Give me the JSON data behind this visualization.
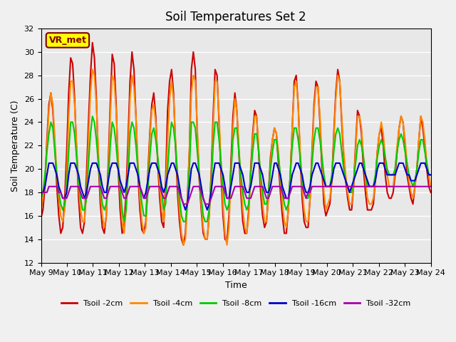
{
  "title": "Soil Temperatures Set 2",
  "xlabel": "Time",
  "ylabel": "Soil Temperature (C)",
  "xlim": [
    0,
    15
  ],
  "ylim": [
    12,
    32
  ],
  "yticks": [
    12,
    14,
    16,
    18,
    20,
    22,
    24,
    26,
    28,
    30,
    32
  ],
  "xtick_labels": [
    "May 9",
    "May 10",
    "May 11",
    "May 12",
    "May 13",
    "May 14",
    "May 15",
    "May 16",
    "May 17",
    "May 18",
    "May 19",
    "May 20",
    "May 21",
    "May 22",
    "May 23",
    "May 24"
  ],
  "background_color": "#e8e8e8",
  "grid_color": "#ffffff",
  "annotation_text": "VR_met",
  "annotation_box_color": "#ffff00",
  "annotation_text_color": "#800000",
  "series": {
    "Tsoil -2cm": {
      "color": "#cc0000",
      "lw": 1.5
    },
    "Tsoil -4cm": {
      "color": "#ff8800",
      "lw": 1.5
    },
    "Tsoil -8cm": {
      "color": "#00cc00",
      "lw": 1.5
    },
    "Tsoil -16cm": {
      "color": "#0000cc",
      "lw": 1.5
    },
    "Tsoil -32cm": {
      "color": "#aa00aa",
      "lw": 1.5
    }
  },
  "t2cm": [
    15.8,
    16.5,
    18.5,
    22.5,
    25.5,
    26.5,
    25.0,
    22.0,
    18.5,
    16.0,
    14.5,
    15.0,
    17.5,
    21.5,
    26.5,
    29.5,
    29.0,
    26.0,
    21.5,
    17.5,
    15.0,
    14.5,
    15.5,
    19.5,
    24.0,
    28.0,
    30.8,
    29.5,
    26.0,
    20.5,
    17.0,
    15.0,
    14.5,
    16.0,
    20.5,
    25.5,
    29.8,
    29.0,
    25.5,
    20.0,
    16.5,
    14.5,
    15.0,
    18.0,
    22.5,
    27.5,
    30.0,
    28.5,
    24.5,
    19.5,
    16.5,
    14.8,
    14.5,
    15.5,
    19.5,
    23.0,
    25.5,
    26.5,
    24.5,
    20.5,
    17.5,
    15.5,
    15.0,
    19.0,
    25.0,
    27.5,
    28.5,
    26.5,
    22.0,
    18.0,
    15.5,
    14.0,
    13.5,
    14.5,
    17.5,
    21.5,
    28.5,
    30.0,
    28.5,
    23.0,
    19.0,
    16.5,
    14.5,
    14.0,
    14.0,
    16.0,
    19.5,
    24.5,
    28.5,
    28.0,
    24.0,
    19.5,
    16.0,
    14.0,
    13.8,
    16.0,
    20.5,
    24.5,
    26.5,
    25.0,
    21.5,
    18.0,
    15.5,
    14.5,
    14.5,
    16.5,
    20.0,
    23.0,
    25.0,
    24.5,
    21.5,
    18.0,
    16.0,
    15.0,
    15.5,
    18.0,
    21.0,
    22.5,
    23.5,
    23.0,
    20.5,
    18.0,
    16.0,
    14.5,
    14.5,
    16.5,
    19.5,
    23.5,
    27.5,
    28.0,
    25.5,
    21.0,
    17.5,
    15.5,
    15.0,
    15.0,
    17.5,
    21.5,
    25.5,
    27.5,
    27.0,
    24.0,
    20.0,
    17.0,
    16.0,
    16.5,
    17.0,
    19.0,
    23.0,
    26.5,
    28.5,
    27.5,
    24.0,
    21.0,
    19.0,
    17.5,
    16.5,
    16.5,
    18.5,
    22.0,
    25.0,
    24.5,
    23.0,
    20.0,
    18.0,
    16.5,
    16.5,
    16.5,
    17.0,
    19.0,
    21.5,
    23.0,
    23.5,
    22.0,
    19.5,
    18.0,
    17.5,
    17.5,
    18.0,
    19.5,
    21.5,
    23.5,
    24.5,
    24.0,
    22.0,
    19.5,
    18.5,
    17.5,
    17.0,
    18.5,
    20.0,
    22.5,
    24.5,
    23.5,
    22.0,
    20.0,
    18.5,
    18.0
  ],
  "t4cm": [
    16.5,
    17.5,
    19.0,
    22.0,
    25.0,
    26.5,
    25.5,
    22.5,
    19.5,
    17.5,
    16.0,
    15.5,
    16.5,
    19.5,
    24.5,
    27.5,
    27.5,
    25.5,
    22.0,
    18.5,
    16.5,
    15.5,
    15.5,
    18.0,
    22.5,
    26.5,
    28.5,
    28.0,
    25.5,
    21.5,
    18.0,
    16.0,
    15.0,
    16.0,
    19.5,
    24.5,
    28.0,
    27.5,
    25.0,
    21.0,
    18.0,
    15.5,
    14.5,
    16.5,
    21.0,
    26.0,
    28.0,
    27.0,
    24.5,
    20.5,
    17.5,
    15.5,
    14.5,
    15.0,
    18.5,
    22.5,
    25.0,
    25.5,
    24.0,
    21.0,
    18.5,
    16.5,
    15.5,
    18.0,
    22.5,
    26.0,
    27.5,
    26.0,
    22.5,
    19.0,
    16.5,
    14.5,
    13.5,
    14.0,
    17.0,
    21.5,
    26.5,
    28.0,
    27.5,
    23.5,
    19.5,
    17.0,
    15.0,
    14.0,
    14.0,
    16.0,
    19.0,
    23.5,
    27.5,
    27.5,
    24.5,
    20.5,
    17.0,
    14.5,
    13.5,
    15.0,
    19.5,
    23.5,
    26.0,
    25.0,
    22.0,
    19.0,
    16.5,
    15.0,
    14.5,
    16.0,
    19.5,
    22.5,
    24.5,
    24.5,
    22.0,
    19.0,
    17.0,
    15.5,
    15.5,
    17.5,
    20.5,
    22.5,
    23.5,
    23.0,
    21.5,
    19.0,
    17.0,
    15.5,
    15.0,
    16.5,
    19.5,
    23.5,
    27.0,
    27.5,
    25.5,
    21.5,
    18.5,
    16.5,
    15.5,
    15.5,
    17.5,
    21.0,
    25.0,
    27.0,
    27.0,
    24.5,
    21.0,
    18.0,
    16.5,
    17.0,
    17.5,
    19.0,
    22.5,
    26.0,
    28.0,
    27.5,
    24.5,
    21.5,
    19.5,
    18.0,
    17.0,
    17.0,
    18.5,
    21.5,
    24.5,
    24.5,
    23.5,
    21.0,
    19.0,
    17.5,
    17.0,
    17.0,
    17.5,
    19.0,
    21.5,
    23.0,
    24.0,
    23.0,
    21.0,
    19.5,
    18.5,
    18.5,
    18.5,
    20.0,
    22.0,
    23.5,
    24.5,
    24.0,
    22.5,
    20.5,
    19.0,
    18.0,
    17.5,
    18.5,
    20.0,
    22.5,
    24.5,
    24.0,
    22.5,
    20.5,
    19.5,
    18.5
  ],
  "t8cm": [
    17.5,
    18.0,
    19.5,
    21.5,
    23.0,
    24.0,
    23.5,
    21.5,
    19.5,
    18.0,
    17.0,
    16.5,
    17.0,
    18.5,
    21.5,
    24.0,
    24.0,
    23.0,
    21.0,
    19.0,
    17.5,
    16.5,
    16.5,
    17.5,
    20.5,
    23.0,
    24.5,
    24.0,
    22.5,
    20.5,
    18.5,
    17.0,
    16.5,
    17.0,
    19.0,
    22.0,
    24.0,
    23.5,
    22.0,
    20.0,
    18.5,
    16.5,
    15.5,
    16.5,
    19.5,
    23.0,
    24.0,
    23.5,
    22.0,
    20.0,
    18.5,
    17.0,
    16.0,
    16.0,
    18.0,
    21.0,
    23.0,
    23.5,
    22.5,
    21.0,
    19.5,
    18.0,
    16.5,
    17.0,
    20.0,
    22.5,
    24.0,
    23.5,
    22.0,
    19.5,
    17.5,
    16.0,
    15.5,
    15.5,
    17.0,
    20.0,
    24.0,
    24.0,
    23.5,
    21.5,
    19.5,
    17.5,
    16.0,
    15.5,
    15.5,
    16.5,
    18.5,
    22.0,
    24.0,
    24.0,
    22.5,
    20.5,
    18.5,
    17.0,
    16.5,
    17.0,
    19.5,
    22.5,
    23.5,
    23.5,
    21.5,
    19.5,
    18.0,
    17.0,
    16.5,
    17.0,
    19.5,
    21.5,
    23.0,
    23.0,
    21.5,
    19.5,
    18.0,
    17.0,
    17.0,
    18.0,
    20.0,
    21.5,
    22.5,
    22.5,
    21.0,
    19.5,
    18.0,
    17.0,
    16.5,
    17.0,
    19.5,
    22.0,
    23.5,
    23.5,
    22.5,
    21.0,
    19.0,
    18.0,
    17.5,
    17.5,
    18.5,
    20.5,
    22.5,
    23.5,
    23.5,
    22.5,
    21.0,
    19.5,
    18.5,
    18.5,
    18.5,
    19.5,
    21.5,
    23.0,
    23.5,
    23.0,
    21.5,
    20.0,
    19.0,
    18.5,
    18.0,
    18.0,
    19.0,
    20.5,
    22.0,
    22.5,
    22.0,
    21.0,
    19.5,
    18.5,
    18.5,
    18.5,
    18.5,
    19.5,
    21.0,
    22.0,
    22.5,
    22.0,
    21.0,
    20.0,
    19.5,
    19.5,
    19.5,
    20.0,
    21.5,
    22.5,
    23.0,
    22.5,
    21.5,
    20.5,
    19.5,
    19.0,
    18.5,
    19.0,
    20.0,
    21.5,
    22.5,
    22.5,
    21.5,
    20.5,
    19.5,
    19.5
  ],
  "t16cm": [
    18.0,
    18.0,
    18.5,
    19.5,
    20.5,
    20.5,
    20.5,
    20.0,
    19.5,
    18.5,
    18.0,
    17.5,
    17.5,
    18.0,
    19.5,
    20.5,
    20.5,
    20.5,
    20.0,
    19.5,
    18.5,
    18.0,
    17.5,
    18.0,
    19.0,
    20.0,
    20.5,
    20.5,
    20.5,
    20.0,
    19.5,
    18.5,
    18.0,
    18.0,
    19.0,
    20.0,
    20.5,
    20.5,
    20.5,
    20.0,
    19.0,
    18.5,
    18.0,
    18.5,
    19.5,
    20.5,
    20.5,
    20.5,
    20.0,
    19.5,
    18.5,
    18.0,
    17.5,
    18.0,
    19.0,
    20.0,
    20.5,
    20.5,
    20.5,
    20.0,
    19.5,
    18.5,
    18.0,
    18.5,
    19.5,
    20.0,
    20.5,
    20.5,
    20.0,
    19.5,
    18.5,
    17.5,
    17.0,
    16.5,
    17.0,
    18.5,
    20.0,
    20.5,
    20.5,
    20.0,
    19.5,
    18.5,
    17.5,
    17.0,
    16.5,
    17.0,
    18.0,
    19.5,
    20.5,
    20.5,
    20.5,
    20.0,
    19.5,
    18.5,
    17.5,
    17.5,
    18.5,
    19.5,
    20.5,
    20.5,
    20.5,
    20.0,
    19.5,
    18.5,
    18.0,
    18.0,
    18.5,
    19.5,
    20.5,
    20.5,
    20.5,
    20.0,
    19.5,
    18.5,
    18.0,
    18.0,
    18.5,
    19.5,
    20.5,
    20.5,
    20.0,
    19.5,
    18.5,
    18.0,
    17.5,
    17.5,
    18.5,
    19.5,
    20.0,
    20.5,
    20.5,
    20.0,
    19.5,
    18.5,
    18.0,
    18.0,
    18.5,
    19.5,
    20.0,
    20.5,
    20.5,
    20.0,
    19.5,
    19.0,
    18.5,
    18.5,
    18.5,
    19.0,
    20.0,
    20.5,
    20.5,
    20.5,
    20.0,
    19.5,
    19.0,
    18.5,
    18.0,
    18.5,
    19.0,
    19.5,
    20.0,
    20.5,
    20.5,
    20.0,
    19.5,
    19.0,
    18.5,
    18.5,
    18.5,
    19.0,
    20.0,
    20.5,
    20.5,
    20.5,
    20.0,
    19.5,
    19.5,
    19.5,
    19.5,
    19.5,
    20.0,
    20.5,
    20.5,
    20.5,
    20.0,
    19.5,
    19.5,
    19.0,
    19.0,
    19.0,
    19.5,
    20.0,
    20.5,
    20.5,
    20.5,
    20.0,
    19.5,
    19.5
  ],
  "t32cm": [
    18.0,
    18.0,
    18.0,
    18.0,
    18.5,
    18.5,
    18.5,
    18.5,
    18.5,
    18.0,
    18.0,
    17.5,
    17.5,
    17.5,
    18.0,
    18.5,
    18.5,
    18.5,
    18.5,
    18.5,
    18.0,
    17.5,
    17.5,
    17.5,
    18.0,
    18.5,
    18.5,
    18.5,
    18.5,
    18.5,
    18.5,
    18.0,
    17.5,
    17.5,
    18.0,
    18.5,
    18.5,
    18.5,
    18.5,
    18.5,
    18.5,
    18.0,
    17.5,
    17.5,
    18.0,
    18.5,
    18.5,
    18.5,
    18.5,
    18.5,
    18.5,
    18.0,
    17.5,
    17.5,
    18.0,
    18.5,
    18.5,
    18.5,
    18.5,
    18.5,
    18.5,
    18.0,
    17.5,
    17.5,
    18.0,
    18.5,
    18.5,
    18.5,
    18.5,
    18.5,
    18.0,
    17.5,
    17.0,
    17.0,
    17.0,
    17.5,
    18.0,
    18.5,
    18.5,
    18.5,
    18.5,
    18.0,
    17.5,
    17.0,
    17.0,
    17.0,
    17.5,
    18.0,
    18.5,
    18.5,
    18.5,
    18.5,
    18.5,
    18.0,
    17.5,
    17.5,
    17.5,
    18.0,
    18.5,
    18.5,
    18.5,
    18.5,
    18.5,
    18.0,
    17.5,
    17.5,
    17.5,
    18.0,
    18.5,
    18.5,
    18.5,
    18.5,
    18.5,
    18.0,
    17.5,
    17.5,
    18.0,
    18.5,
    18.5,
    18.5,
    18.5,
    18.5,
    18.0,
    17.5,
    17.5,
    17.5,
    18.0,
    18.5,
    18.5,
    18.5,
    18.5,
    18.5,
    18.5,
    18.0,
    17.5,
    18.0,
    18.0,
    18.5,
    18.5,
    18.5,
    18.5,
    18.5,
    18.5,
    18.5,
    18.5,
    18.5,
    18.5,
    18.5,
    18.5,
    18.5,
    18.5,
    18.5,
    18.5,
    18.5,
    18.5,
    18.5,
    18.5,
    18.5,
    18.5,
    18.5,
    18.5,
    18.5,
    18.5,
    18.5,
    18.5,
    18.5,
    18.5,
    18.5,
    18.5,
    18.5,
    18.5,
    18.5,
    18.5,
    18.5,
    18.5,
    18.5,
    18.5,
    18.5,
    18.5,
    18.5,
    18.5,
    18.5,
    18.5,
    18.5,
    18.5,
    18.5,
    18.5,
    18.5,
    18.5,
    18.5,
    18.5,
    18.5,
    18.5,
    18.5,
    18.5,
    18.5,
    18.5,
    18.5
  ]
}
